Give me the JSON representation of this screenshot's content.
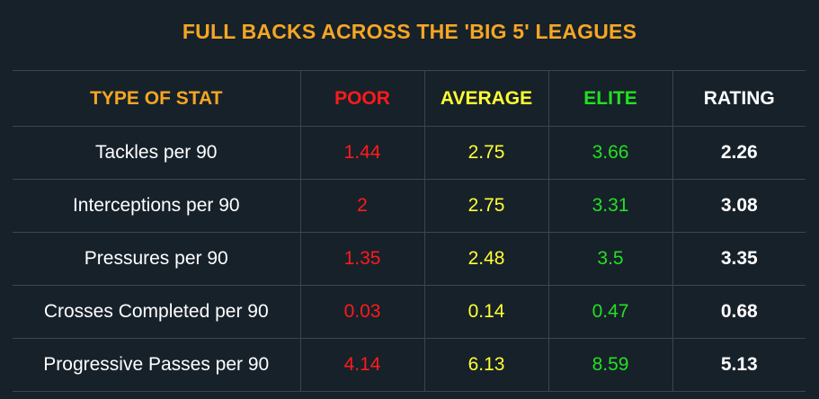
{
  "title": "FULL BACKS ACROSS THE 'BIG 5' LEAGUES",
  "colors": {
    "background": "#17212a",
    "title": "#f5a623",
    "poor": "#ff1a1a",
    "average": "#ffff33",
    "elite": "#22e022",
    "rating": "#ffffff",
    "grid": "#3a4650"
  },
  "headers": {
    "stat": "TYPE OF STAT",
    "poor": "POOR",
    "average": "AVERAGE",
    "elite": "ELITE",
    "rating": "RATING"
  },
  "rows": [
    {
      "stat": "Tackles per 90",
      "poor": "1.44",
      "average": "2.75",
      "elite": "3.66",
      "rating": "2.26"
    },
    {
      "stat": "Interceptions per 90",
      "poor": "2",
      "average": "2.75",
      "elite": "3.31",
      "rating": "3.08"
    },
    {
      "stat": "Pressures per 90",
      "poor": "1.35",
      "average": "2.48",
      "elite": "3.5",
      "rating": "3.35"
    },
    {
      "stat": "Crosses Completed per 90",
      "poor": "0.03",
      "average": "0.14",
      "elite": "0.47",
      "rating": "0.68"
    },
    {
      "stat": "Progressive Passes per 90",
      "poor": "4.14",
      "average": "6.13",
      "elite": "8.59",
      "rating": "5.13"
    }
  ]
}
